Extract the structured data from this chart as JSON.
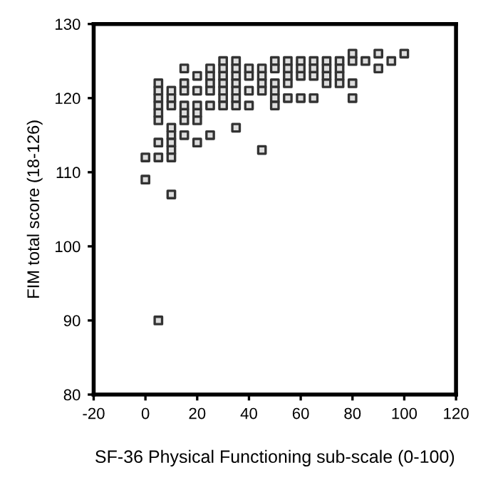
{
  "chart_data": {
    "type": "scatter",
    "xlabel": "SF-36 Physical Functioning sub-scale (0-100)",
    "ylabel": "FIM total score (18-126)",
    "xlim": [
      -20,
      120
    ],
    "xticks": [
      -20,
      0,
      20,
      40,
      60,
      80,
      100,
      120
    ],
    "ylim": [
      80,
      130
    ],
    "yticks": [
      80,
      90,
      100,
      110,
      120,
      130
    ],
    "grid": false,
    "marker": "square",
    "series": [
      {
        "color": "#333333",
        "x": [
          0,
          0,
          5,
          5,
          5,
          5,
          5,
          5,
          5,
          5,
          5,
          10,
          10,
          10,
          10,
          10,
          10,
          10,
          10,
          10,
          15,
          15,
          15,
          15,
          15,
          15,
          15,
          20,
          20,
          20,
          20,
          20,
          20,
          25,
          25,
          25,
          25,
          25,
          25,
          30,
          30,
          30,
          30,
          30,
          30,
          30,
          35,
          35,
          35,
          35,
          35,
          35,
          35,
          35,
          40,
          40,
          40,
          40,
          45,
          45,
          45,
          45,
          45,
          50,
          50,
          50,
          50,
          50,
          50,
          55,
          55,
          55,
          55,
          55,
          60,
          60,
          60,
          60,
          65,
          65,
          65,
          65,
          70,
          70,
          70,
          70,
          75,
          75,
          75,
          75,
          80,
          80,
          80,
          80,
          85,
          90,
          90,
          95,
          100
        ],
        "values": [
          112,
          109,
          112,
          114,
          90,
          122,
          121,
          120,
          119,
          118,
          117,
          121,
          120,
          119,
          116,
          115,
          114,
          113,
          112,
          107,
          124,
          122,
          121,
          119,
          118,
          117,
          115,
          123,
          121,
          119,
          118,
          117,
          114,
          124,
          123,
          122,
          121,
          119,
          115,
          125,
          124,
          123,
          122,
          121,
          120,
          119,
          125,
          124,
          123,
          122,
          121,
          120,
          119,
          116,
          124,
          123,
          121,
          119,
          124,
          123,
          122,
          121,
          113,
          125,
          124,
          122,
          121,
          120,
          119,
          125,
          124,
          123,
          122,
          120,
          125,
          124,
          123,
          120,
          125,
          124,
          123,
          120,
          125,
          124,
          123,
          122,
          125,
          124,
          123,
          122,
          126,
          125,
          122,
          120,
          125,
          126,
          124,
          125,
          126
        ]
      }
    ]
  }
}
